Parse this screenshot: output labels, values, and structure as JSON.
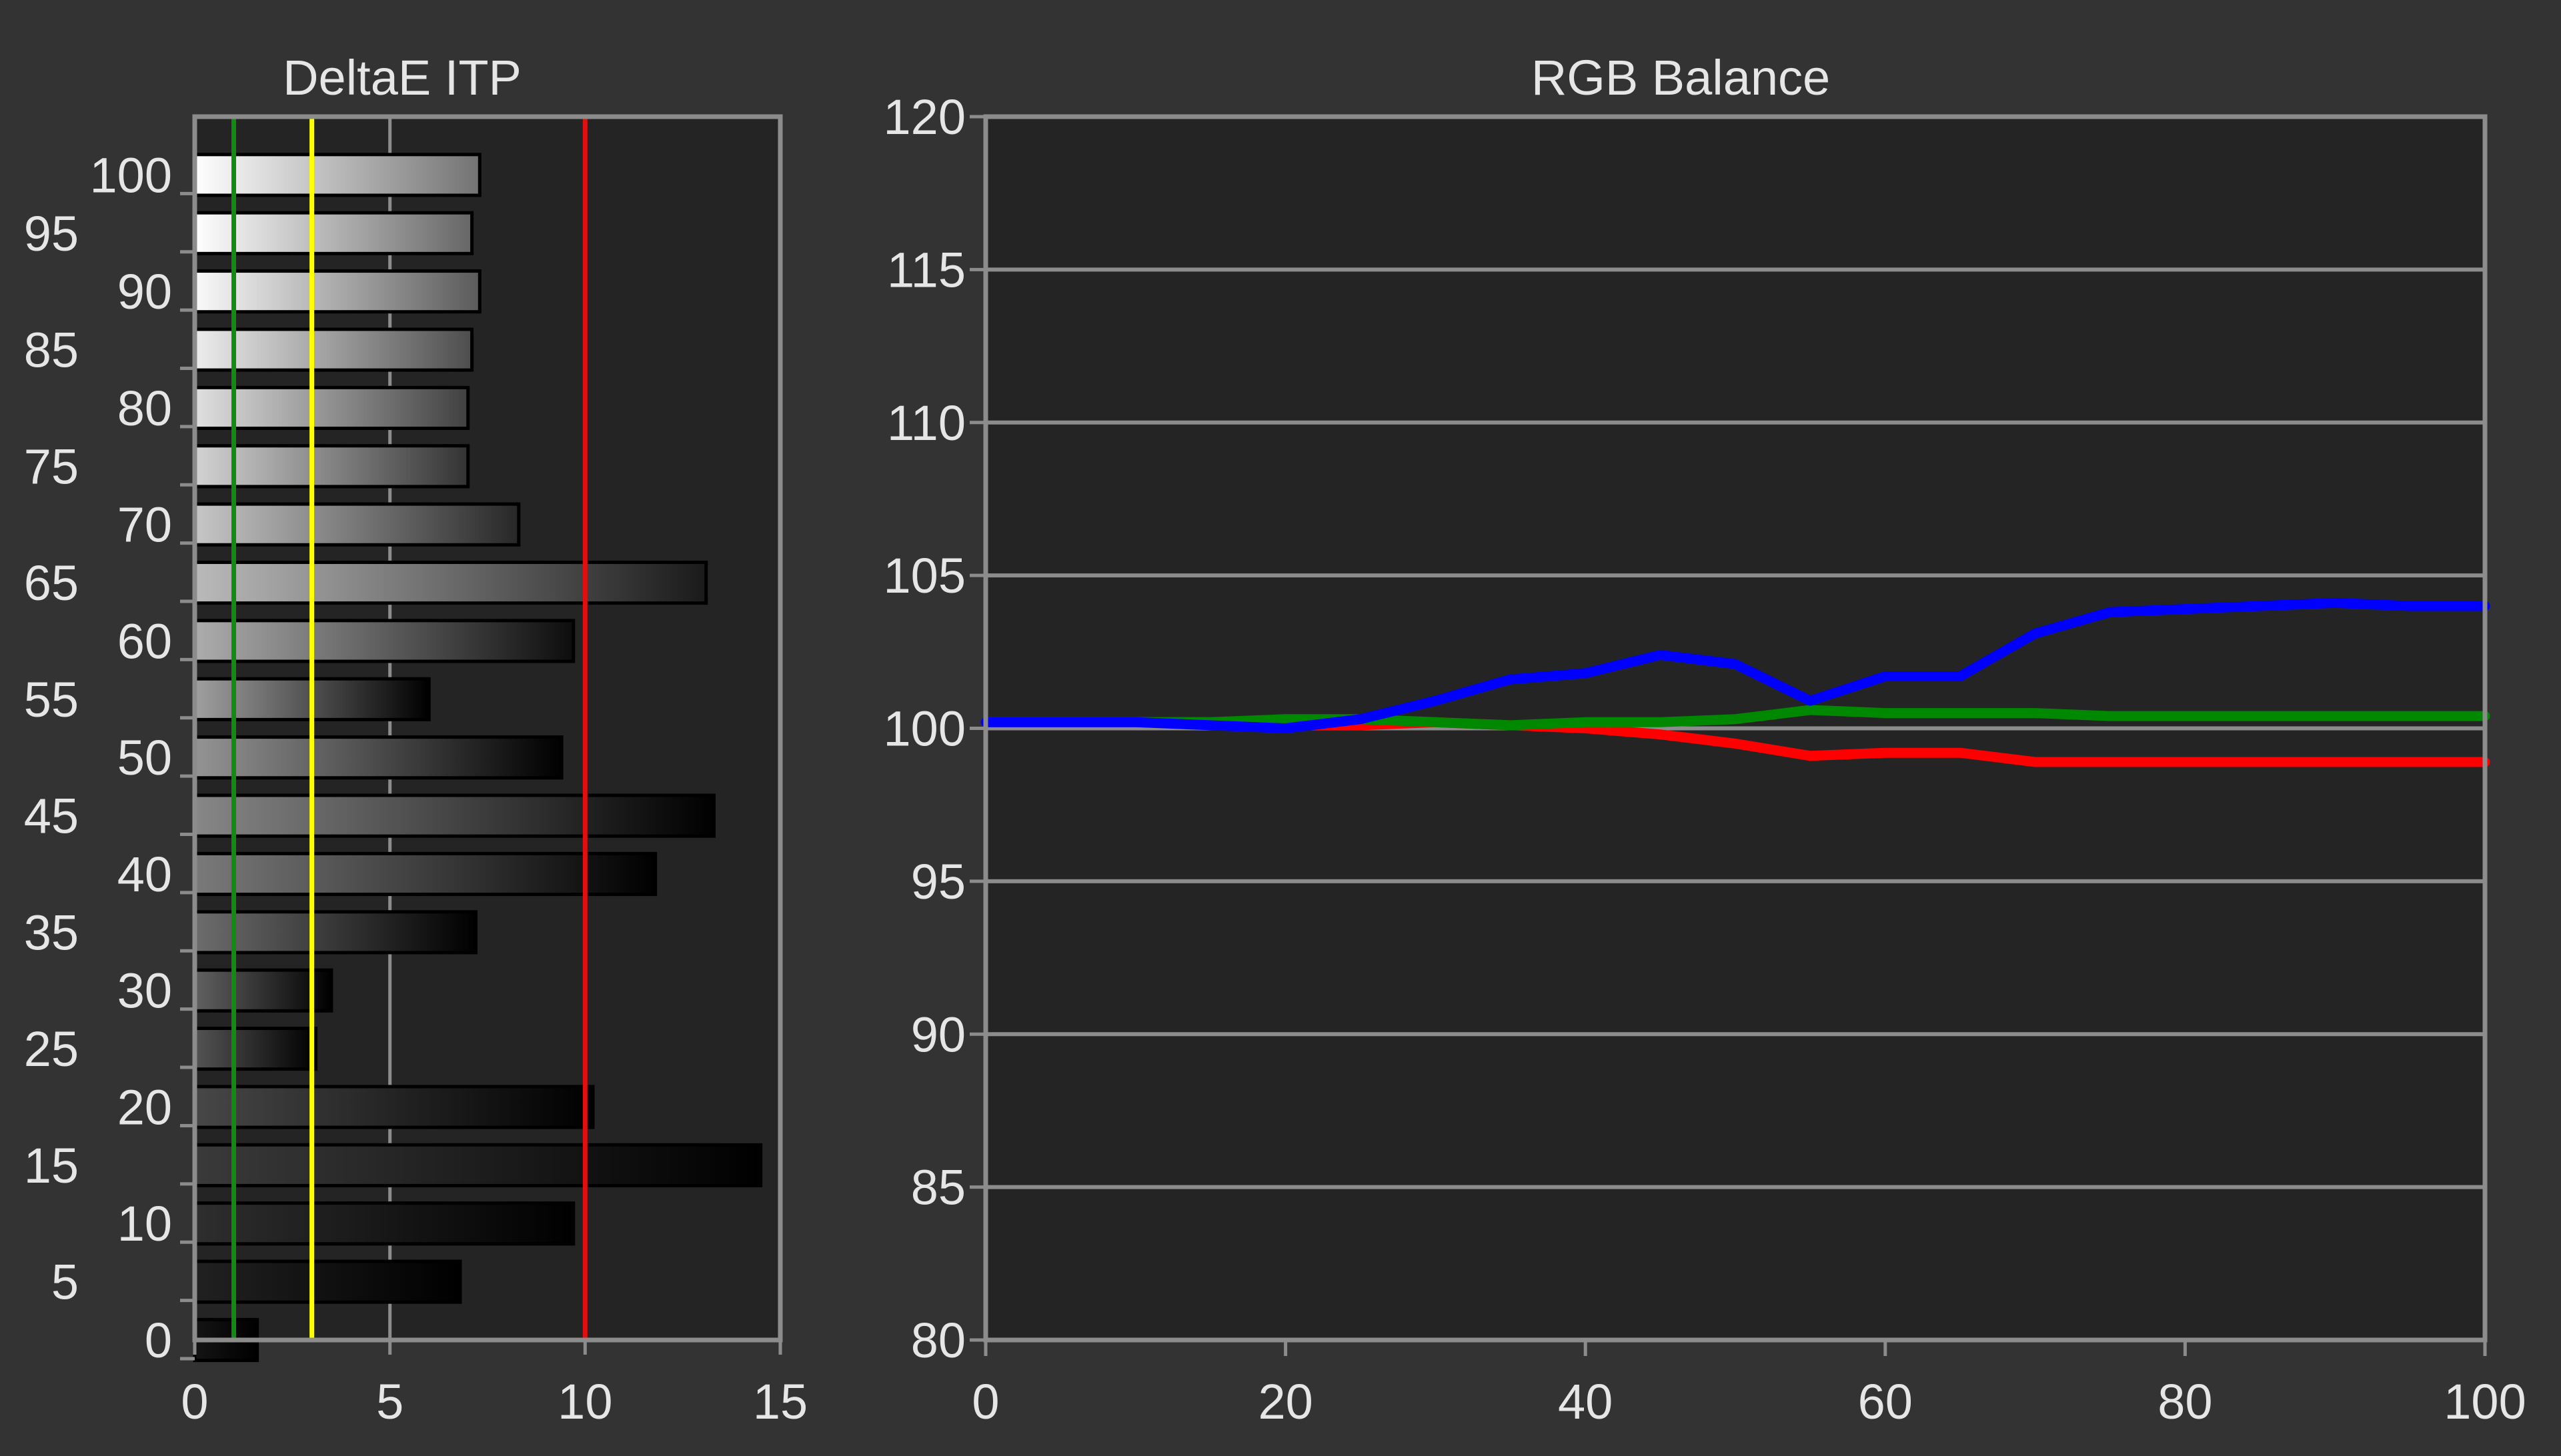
{
  "colors": {
    "background": "#333333",
    "plot_background": "#242424",
    "axis": "#8c8c8c",
    "grid": "#8c8c8c",
    "text": "#e6e6e6",
    "threshold_green": "#138a13",
    "threshold_yellow": "#ffff00",
    "threshold_red": "#e01010",
    "series_red": "#ff0000",
    "series_green": "#008800",
    "series_blue": "#0000ff"
  },
  "chart_data": [
    {
      "type": "bar",
      "orientation": "horizontal",
      "title": "DeltaE ITP",
      "categories": [
        0,
        5,
        10,
        15,
        20,
        25,
        30,
        35,
        40,
        45,
        50,
        55,
        60,
        65,
        70,
        75,
        80,
        85,
        90,
        95,
        100
      ],
      "values": [
        1.6,
        6.8,
        9.7,
        14.5,
        10.2,
        3.1,
        3.5,
        7.2,
        11.8,
        13.3,
        9.4,
        6.0,
        9.7,
        13.1,
        8.3,
        7.0,
        7.0,
        7.1,
        7.3,
        7.1,
        7.3
      ],
      "xlim": [
        0,
        15
      ],
      "ylim": [
        0,
        105
      ],
      "x_ticks": [
        "0",
        "5",
        "10",
        "15"
      ],
      "y_tick_labels": [
        "0",
        "5",
        "10",
        "15",
        "20",
        "25",
        "30",
        "35",
        "40",
        "45",
        "50",
        "55",
        "60",
        "65",
        "70",
        "75",
        "80",
        "85",
        "90",
        "95",
        "100"
      ],
      "threshold_lines": [
        {
          "value": 1,
          "color": "green"
        },
        {
          "value": 3,
          "color": "yellow"
        },
        {
          "value": 10,
          "color": "red"
        }
      ],
      "grid": "vertical at x ticks"
    },
    {
      "type": "line",
      "title": "RGB Balance",
      "x": [
        0,
        5,
        10,
        15,
        20,
        25,
        30,
        35,
        40,
        45,
        50,
        55,
        60,
        65,
        70,
        75,
        80,
        85,
        90,
        95,
        100
      ],
      "series": [
        {
          "color": "red",
          "values": [
            100.2,
            100.2,
            100.2,
            100.2,
            100.1,
            100.1,
            100.2,
            100.1,
            100.0,
            99.8,
            99.5,
            99.1,
            99.2,
            99.2,
            98.9,
            98.9,
            98.9,
            98.9,
            98.9,
            98.9,
            98.9
          ]
        },
        {
          "color": "green",
          "values": [
            100.2,
            100.2,
            100.2,
            100.2,
            100.3,
            100.3,
            100.2,
            100.1,
            100.2,
            100.2,
            100.3,
            100.6,
            100.5,
            100.5,
            100.5,
            100.4,
            100.4,
            100.4,
            100.4,
            100.4,
            100.4
          ]
        },
        {
          "color": "blue",
          "values": [
            100.2,
            100.2,
            100.2,
            100.1,
            100.0,
            100.3,
            100.9,
            101.6,
            101.8,
            102.4,
            102.1,
            100.9,
            101.7,
            101.7,
            103.1,
            103.8,
            103.9,
            104.0,
            104.1,
            104.0,
            104.0
          ]
        }
      ],
      "xlim": [
        0,
        100
      ],
      "ylim": [
        80,
        120
      ],
      "x_ticks": [
        "0",
        "20",
        "40",
        "60",
        "80",
        "100"
      ],
      "y_ticks": [
        "80",
        "85",
        "90",
        "95",
        "100",
        "105",
        "110",
        "115",
        "120"
      ],
      "grid": "horizontal at y ticks"
    }
  ]
}
